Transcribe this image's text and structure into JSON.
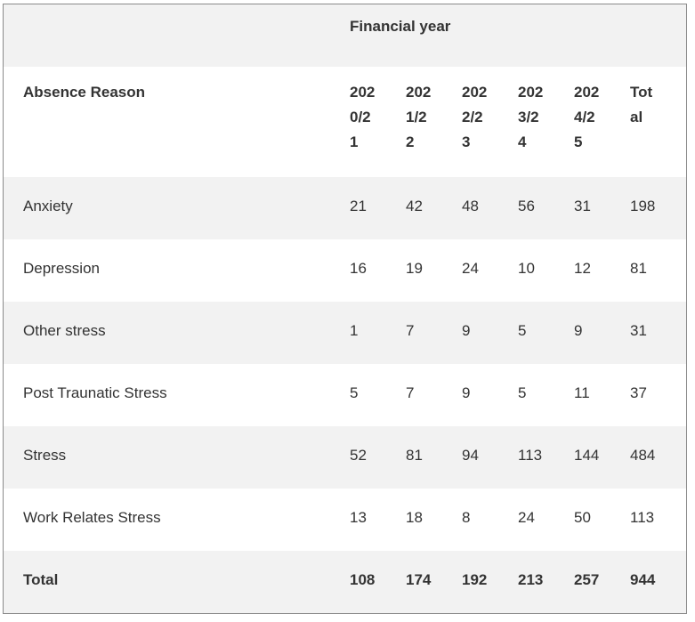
{
  "table": {
    "super_header": "Financial year",
    "reason_header": "Absence Reason",
    "year_headers": [
      [
        "202",
        "0/2",
        "1"
      ],
      [
        "202",
        "1/2",
        "2"
      ],
      [
        "202",
        "2/2",
        "3"
      ],
      [
        "202",
        "3/2",
        "4"
      ],
      [
        "202",
        "4/2",
        "5"
      ],
      [
        "Tot",
        "al"
      ]
    ],
    "rows": [
      {
        "reason": "Anxiety",
        "values": [
          "21",
          "42",
          "48",
          "56",
          "31",
          "198"
        ]
      },
      {
        "reason": "Depression",
        "values": [
          "16",
          "19",
          "24",
          "10",
          "12",
          "81"
        ]
      },
      {
        "reason": "Other stress",
        "values": [
          "1",
          "7",
          "9",
          "5",
          "9",
          "31"
        ]
      },
      {
        "reason": "Post Traunatic Stress",
        "values": [
          "5",
          "7",
          "9",
          "5",
          "11",
          "37"
        ]
      },
      {
        "reason": "Stress",
        "values": [
          "52",
          "81",
          "94",
          "113",
          "144",
          "484"
        ]
      },
      {
        "reason": "Work Relates Stress",
        "values": [
          "13",
          "18",
          "8",
          "24",
          "50",
          "113"
        ]
      }
    ],
    "total_row": {
      "reason": "Total",
      "values": [
        "108",
        "174",
        "192",
        "213",
        "257",
        "944"
      ]
    }
  },
  "colors": {
    "shaded_row": "#f2f2f2",
    "border": "#8a8a8a",
    "text": "#333333"
  }
}
